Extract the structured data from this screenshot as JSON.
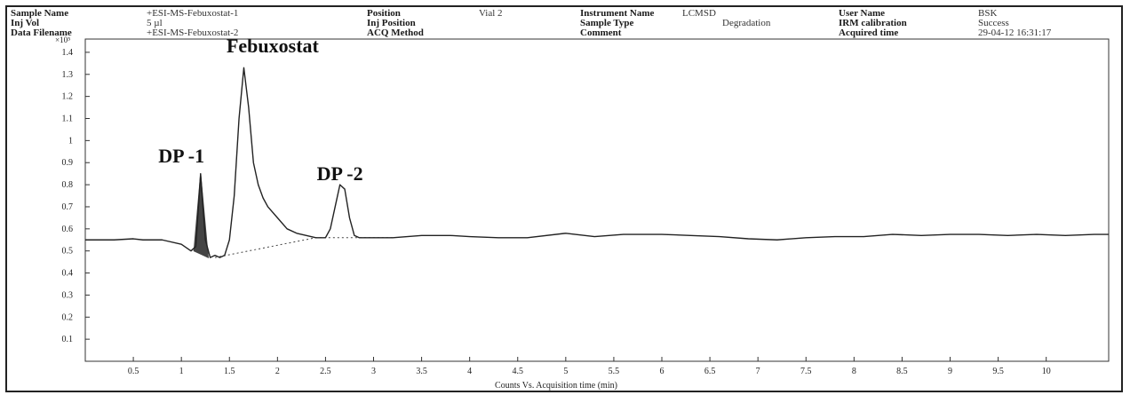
{
  "header": {
    "sample_name_label": "Sample Name",
    "sample_name_value": "+ESI-MS-Febuxostat-1",
    "inj_vol_label": "Inj Vol",
    "inj_vol_value": "5 µl",
    "data_filename_label": "Data Filename",
    "data_filename_value": "+ESI-MS-Febuxostat-2",
    "position_label": "Position",
    "position_value": "Vial 2",
    "inj_position_label": "Inj Position",
    "acq_method_label": "ACQ Method",
    "instrument_name_label": "Instrument Name",
    "instrument_name_value": "LCMSD",
    "sample_type_label": "Sample Type",
    "sample_type_value": "Degradation",
    "comment_label": "Comment",
    "user_name_label": "User Name",
    "user_name_value": "BSK",
    "irm_label": "IRM calibration",
    "irm_value": "Success",
    "acquired_time_label": "Acquired time",
    "acquired_time_value": "29-04-12  16:31:17"
  },
  "chart_data": {
    "type": "line",
    "y_multiplier_label": "×10⁵",
    "xlabel": "Counts Vs. Acquisition time (min)",
    "xlim": [
      0,
      10.65
    ],
    "ylim": [
      0,
      1.46
    ],
    "x_ticks": [
      "0.5",
      "1",
      "1.5",
      "2",
      "2.5",
      "3",
      "3.5",
      "4",
      "4.5",
      "5",
      "5.5",
      "6",
      "6.5",
      "7",
      "7.5",
      "8",
      "8.5",
      "9",
      "9.5",
      "10"
    ],
    "y_ticks": [
      "0.1",
      "0.2",
      "0.3",
      "0.4",
      "0.5",
      "0.6",
      "0.7",
      "0.8",
      "0.9",
      "1",
      "1.1",
      "1.2",
      "1.3",
      "1.4"
    ],
    "series": [
      {
        "color": "#222222",
        "x": [
          0,
          0.3,
          0.5,
          0.6,
          0.8,
          1.0,
          1.1,
          1.15,
          1.2,
          1.25,
          1.3,
          1.35,
          1.4,
          1.45,
          1.5,
          1.55,
          1.6,
          1.65,
          1.7,
          1.75,
          1.8,
          1.85,
          1.9,
          2.0,
          2.1,
          2.2,
          2.3,
          2.4,
          2.5,
          2.55,
          2.6,
          2.65,
          2.7,
          2.75,
          2.8,
          2.85,
          2.9,
          3.0,
          3.2,
          3.5,
          3.8,
          4.0,
          4.3,
          4.6,
          5.0,
          5.3,
          5.6,
          6.0,
          6.3,
          6.6,
          6.9,
          7.2,
          7.5,
          7.8,
          8.1,
          8.4,
          8.7,
          9.0,
          9.3,
          9.6,
          9.9,
          10.2,
          10.5,
          10.65
        ],
        "y": [
          0.55,
          0.55,
          0.555,
          0.55,
          0.55,
          0.53,
          0.5,
          0.52,
          0.85,
          0.55,
          0.47,
          0.48,
          0.47,
          0.48,
          0.55,
          0.75,
          1.1,
          1.33,
          1.15,
          0.9,
          0.8,
          0.74,
          0.7,
          0.65,
          0.6,
          0.58,
          0.57,
          0.56,
          0.56,
          0.6,
          0.7,
          0.8,
          0.78,
          0.65,
          0.57,
          0.56,
          0.56,
          0.56,
          0.56,
          0.57,
          0.57,
          0.565,
          0.56,
          0.56,
          0.58,
          0.565,
          0.575,
          0.575,
          0.57,
          0.565,
          0.555,
          0.55,
          0.56,
          0.565,
          0.565,
          0.575,
          0.57,
          0.575,
          0.575,
          0.57,
          0.575,
          0.57,
          0.575,
          0.575
        ]
      }
    ],
    "shaded_peak": {
      "x": [
        1.13,
        1.2,
        1.28
      ],
      "y": [
        0.5,
        0.85,
        0.47
      ],
      "color": "#444444"
    },
    "baseline_dotted": {
      "x": [
        1.35,
        2.4,
        2.45,
        3.2
      ],
      "y": [
        0.47,
        0.56,
        0.56,
        0.56
      ]
    },
    "annotations": [
      {
        "text": "DP -1",
        "x": 1.0,
        "y": 0.9
      },
      {
        "text": "Febuxostat",
        "x": 1.95,
        "y": 1.4
      },
      {
        "text": "DP -2",
        "x": 2.65,
        "y": 0.82
      }
    ]
  }
}
